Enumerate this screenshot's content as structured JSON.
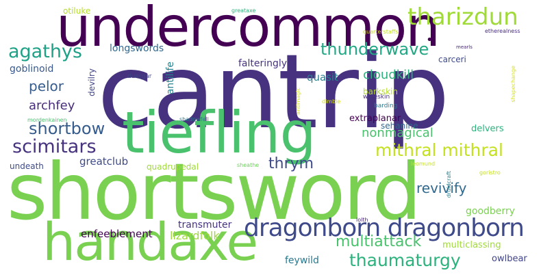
{
  "palette": {
    "dark_purple": "#440154",
    "indigo": "#46327e",
    "slate_blue": "#365c8d",
    "teal_blue": "#277f8e",
    "teal": "#1fa187",
    "green": "#4ac16d",
    "lime": "#a0da39",
    "yellow": "#fde725"
  },
  "words": [
    {
      "text": "cantrip",
      "color": "#46327e"
    },
    {
      "text": "shortsword",
      "color": "#7ad151"
    },
    {
      "text": "undercommon",
      "color": "#440154"
    },
    {
      "text": "tiefling",
      "color": "#4ac16d"
    },
    {
      "text": "handaxe",
      "color": "#7ad151"
    },
    {
      "text": "dragonborn dragonborn",
      "color": "#3e4a89"
    },
    {
      "text": "tharizdun",
      "color": "#a0da39"
    },
    {
      "text": "agathys",
      "color": "#1fa187"
    },
    {
      "text": "mithral mithral",
      "color": "#c5e021"
    },
    {
      "text": "scimitars",
      "color": "#46327e"
    },
    {
      "text": "shortbow",
      "color": "#365c8d"
    },
    {
      "text": "thunderwave",
      "color": "#22a884"
    },
    {
      "text": "thaumaturgy",
      "color": "#2db27d"
    },
    {
      "text": "multiattack",
      "color": "#4ac16d"
    },
    {
      "text": "nonmagical",
      "color": "#4ac16d"
    },
    {
      "text": "thrym",
      "color": "#3e4a89"
    },
    {
      "text": "revivify",
      "color": "#31688e"
    },
    {
      "text": "lizardfolk",
      "color": "#a0da39"
    },
    {
      "text": "pelor",
      "color": "#365c8d"
    },
    {
      "text": "archfey",
      "color": "#472d7b"
    },
    {
      "text": "cloudkill",
      "color": "#2db27d"
    },
    {
      "text": "longswords",
      "color": "#31688e"
    },
    {
      "text": "falteringly",
      "color": "#46327e"
    },
    {
      "text": "goblinoid",
      "color": "#38588c"
    },
    {
      "text": "quasit",
      "color": "#277f8e"
    },
    {
      "text": "greatclub",
      "color": "#3e4a89"
    },
    {
      "text": "enfeeblement",
      "color": "#440154"
    },
    {
      "text": "transmuter",
      "color": "#46327e"
    },
    {
      "text": "goodberry",
      "color": "#7ad151"
    },
    {
      "text": "feywild",
      "color": "#2a788e"
    },
    {
      "text": "owlbear",
      "color": "#414487"
    },
    {
      "text": "multiclassing",
      "color": "#a0da39"
    },
    {
      "text": "extraplanar",
      "color": "#440154"
    },
    {
      "text": "sehanine",
      "color": "#31688e"
    },
    {
      "text": "delvers",
      "color": "#2db27d"
    },
    {
      "text": "carceri",
      "color": "#3e4a89"
    },
    {
      "text": "barkskin",
      "color": "#b5de2b"
    },
    {
      "text": "otiluke",
      "color": "#b5de2b"
    },
    {
      "text": "undeath",
      "color": "#3e4a89"
    },
    {
      "text": "quadrupedal",
      "color": "#a0da39"
    },
    {
      "text": "antilife",
      "color": "#26828e"
    },
    {
      "text": "devilry",
      "color": "#414487"
    },
    {
      "text": "duergar",
      "color": "#414487"
    },
    {
      "text": "wineskin",
      "color": "#46327e"
    },
    {
      "text": "barding",
      "color": "#2a788e"
    },
    {
      "text": "dimble",
      "color": "#d8e219"
    },
    {
      "text": "antimagic",
      "color": "#d8e219"
    },
    {
      "text": "shadowfell",
      "color": "#2a788e"
    },
    {
      "text": "mordenkainen",
      "color": "#4ac16d"
    },
    {
      "text": "sheathe",
      "color": "#6ccd5a"
    },
    {
      "text": "leomund",
      "color": "#c5e021"
    },
    {
      "text": "lolth",
      "color": "#482878"
    },
    {
      "text": "druidcraft",
      "color": "#277f8e"
    },
    {
      "text": "goristro",
      "color": "#c5e021"
    },
    {
      "text": "greataxe",
      "color": "#2db27d"
    },
    {
      "text": "quarterstaffs",
      "color": "#c5e021"
    },
    {
      "text": "etherealness",
      "color": "#472d7b"
    },
    {
      "text": "mearls",
      "color": "#482878"
    },
    {
      "text": "shapechange",
      "color": "#d8e219"
    },
    {
      "text": "•",
      "color": "#440154"
    }
  ]
}
